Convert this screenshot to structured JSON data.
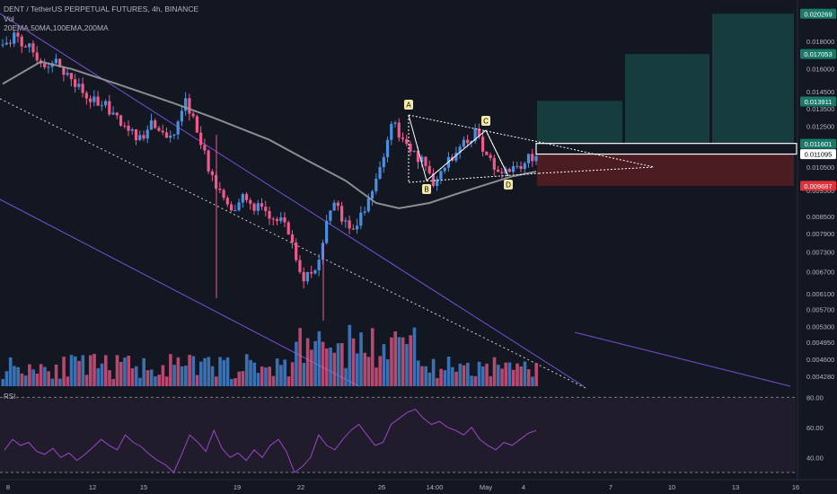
{
  "header": {
    "symbol": "DENT / TetherUS PERPETUAL FUTURES, 4h, BINANCE",
    "vol_label": "Vol",
    "ma_label": "20EMA,50MA,100EMA,200MA"
  },
  "rsi_label": "RSI",
  "colors": {
    "background": "#131722",
    "up": "#ef5a8a",
    "down": "#4a90e2",
    "channel": "#7b4fd6",
    "ma": "#9a9a9a",
    "pattern": "#ffffff",
    "target_zone": "#1a4a48",
    "stop_zone": "#5a1f24",
    "axis_text": "#b2b5be",
    "rsi_line": "#9c45c9",
    "rsi_band": "#2a1f33"
  },
  "chart_data": {
    "type": "candlestick",
    "title": "DENT / TetherUS PERPETUAL FUTURES, 4h, BINANCE",
    "price_axis": {
      "scale": "log",
      "range": [
        0.0041,
        0.0215
      ],
      "ticks": [
        "0.018000",
        "0.016000",
        "0.014500",
        "0.013500",
        "0.012500",
        "0.010500",
        "0.009500",
        "0.008500",
        "0.007900",
        "0.007300",
        "0.006700",
        "0.006100",
        "0.005700",
        "0.005300",
        "0.004950",
        "0.004600",
        "0.004280"
      ],
      "price_labels": [
        {
          "value": "0.020269",
          "kind": "target"
        },
        {
          "value": "0.017053",
          "kind": "target"
        },
        {
          "value": "0.013911",
          "kind": "target"
        },
        {
          "value": "0.011601",
          "kind": "entry"
        },
        {
          "value": "0.011095",
          "kind": "last"
        },
        {
          "value": "0.009687",
          "kind": "stop"
        }
      ]
    },
    "x_axis_labels": [
      "8",
      "12",
      "15",
      "19",
      "22",
      "26",
      "14:00",
      "May",
      "4",
      "7",
      "10",
      "13",
      "16"
    ],
    "pattern_points": [
      {
        "label": "A",
        "price": 0.0129
      },
      {
        "label": "B",
        "price": 0.0096
      },
      {
        "label": "C",
        "price": 0.0121
      },
      {
        "label": "D",
        "price": 0.0097
      }
    ],
    "close_path": [
      [
        0,
        0.0177
      ],
      [
        3,
        0.0184
      ],
      [
        6,
        0.0178
      ],
      [
        9,
        0.017
      ],
      [
        12,
        0.0162
      ],
      [
        15,
        0.0164
      ],
      [
        18,
        0.0152
      ],
      [
        21,
        0.0146
      ],
      [
        24,
        0.014
      ],
      [
        27,
        0.0136
      ],
      [
        30,
        0.0128
      ],
      [
        33,
        0.0122
      ],
      [
        36,
        0.0118
      ],
      [
        39,
        0.0126
      ],
      [
        42,
        0.0122
      ],
      [
        44,
        0.0118
      ],
      [
        46,
        0.0125
      ],
      [
        48,
        0.0138
      ],
      [
        50,
        0.0128
      ],
      [
        52,
        0.0118
      ],
      [
        54,
        0.0105
      ],
      [
        56,
        0.0096
      ],
      [
        58,
        0.0092
      ],
      [
        60,
        0.0087
      ],
      [
        63,
        0.0092
      ],
      [
        66,
        0.0089
      ],
      [
        69,
        0.0086
      ],
      [
        72,
        0.0085
      ],
      [
        75,
        0.008
      ],
      [
        77,
        0.0071
      ],
      [
        79,
        0.0065
      ],
      [
        81,
        0.0066
      ],
      [
        83,
        0.0071
      ],
      [
        85,
        0.0082
      ],
      [
        87,
        0.0089
      ],
      [
        89,
        0.0085
      ],
      [
        91,
        0.008
      ],
      [
        93,
        0.0083
      ],
      [
        95,
        0.0087
      ],
      [
        97,
        0.0095
      ],
      [
        99,
        0.0103
      ],
      [
        101,
        0.012
      ],
      [
        103,
        0.0128
      ],
      [
        105,
        0.0116
      ],
      [
        108,
        0.011
      ],
      [
        111,
        0.0106
      ],
      [
        113,
        0.0099
      ],
      [
        116,
        0.0106
      ],
      [
        119,
        0.0112
      ],
      [
        122,
        0.0118
      ],
      [
        124,
        0.0121
      ],
      [
        126,
        0.0115
      ],
      [
        128,
        0.0108
      ],
      [
        130,
        0.0102
      ],
      [
        132,
        0.0104
      ],
      [
        134,
        0.0105
      ],
      [
        136,
        0.0106
      ],
      [
        138,
        0.0109
      ],
      [
        140,
        0.0111
      ]
    ],
    "ma_path": [
      [
        0,
        0.015
      ],
      [
        10,
        0.0165
      ],
      [
        18,
        0.016
      ],
      [
        30,
        0.015
      ],
      [
        45,
        0.0138
      ],
      [
        55,
        0.013
      ],
      [
        70,
        0.0118
      ],
      [
        80,
        0.0108
      ],
      [
        90,
        0.0099
      ],
      [
        98,
        0.009
      ],
      [
        104,
        0.0088
      ],
      [
        112,
        0.009
      ],
      [
        120,
        0.0094
      ],
      [
        128,
        0.0098
      ],
      [
        134,
        0.0101
      ],
      [
        140,
        0.0103
      ]
    ],
    "rsi": {
      "levels": [
        80,
        60,
        40
      ],
      "tick_labels": [
        "80.00",
        "60.00",
        "40.00"
      ],
      "values": [
        45,
        52,
        48,
        50,
        44,
        42,
        46,
        40,
        43,
        38,
        42,
        47,
        52,
        48,
        45,
        55,
        50,
        47,
        42,
        38,
        35,
        30,
        42,
        55,
        50,
        44,
        58,
        46,
        40,
        43,
        38,
        45,
        40,
        48,
        52,
        44,
        30,
        34,
        40,
        55,
        48,
        45,
        52,
        58,
        62,
        55,
        48,
        50,
        62,
        66,
        70,
        72,
        66,
        62,
        64,
        60,
        58,
        55,
        60,
        52,
        48,
        45,
        50,
        48,
        52,
        56,
        58
      ]
    }
  }
}
